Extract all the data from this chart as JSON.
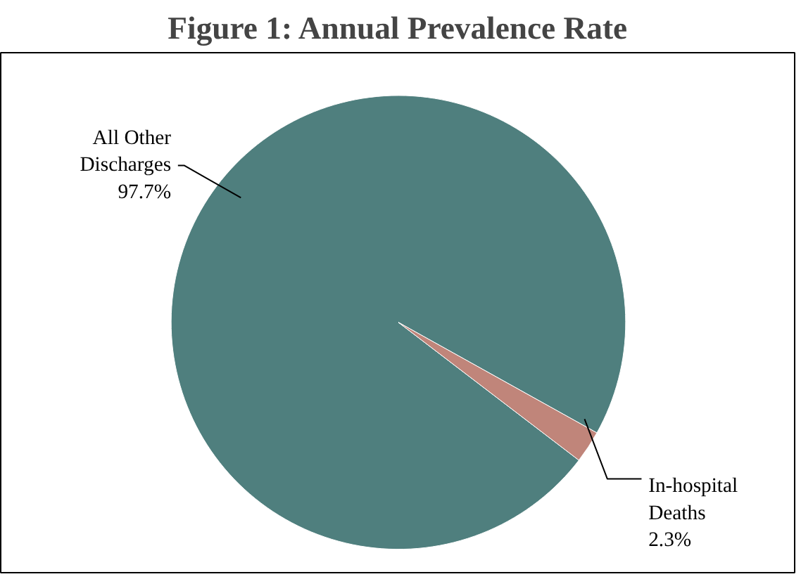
{
  "chart_data": {
    "type": "pie",
    "title": "Figure 1: Annual Prevalence Rate",
    "categories": [
      "All Other Discharges",
      "In-hospital Deaths"
    ],
    "values": [
      97.7,
      2.3
    ],
    "colors": [
      "#4f7f7e",
      "#c0857a"
    ],
    "value_labels": [
      "97.7%",
      "2.3%"
    ]
  }
}
